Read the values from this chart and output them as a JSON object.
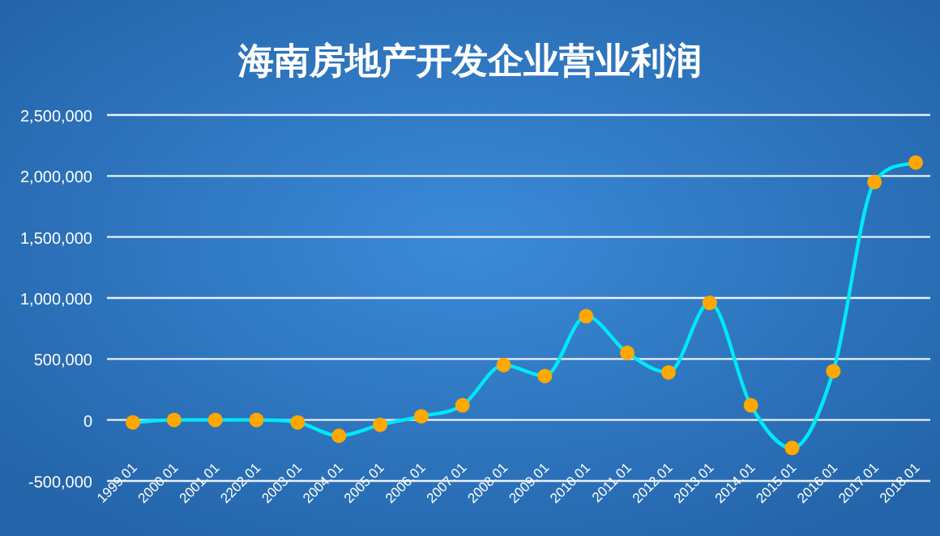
{
  "chart_data": {
    "type": "line",
    "title": "海南房地产开发企业营业利润",
    "categories": [
      "1999.01",
      "2000.01",
      "2001.01",
      "2202.01",
      "2003.01",
      "2004.01",
      "2005.01",
      "2006.01",
      "2007.01",
      "2008.01",
      "2009.01",
      "2010.01",
      "2011.01",
      "2012.01",
      "2013.01",
      "2014.01",
      "2015.01",
      "2016.01",
      "2017.01",
      "2018.01"
    ],
    "series": [
      {
        "color": "#00e8f8",
        "colors": [
          "#ffa800",
          "#ffa800",
          "#ffa800",
          "#ffa800",
          "#ffa800",
          "#ffa800",
          "#ffa800",
          "#ffa800",
          "#ffa800",
          "#ffa800",
          "#ffa800",
          "#ffa800",
          "#ffa800",
          "#ffa800",
          "#ffa800",
          "#ffa800",
          "#ffa800",
          "#ffa800",
          "#ffa800",
          "#ffa800"
        ],
        "values": [
          -20000,
          0,
          0,
          0,
          -20000,
          -130000,
          -40000,
          30000,
          120000,
          450000,
          360000,
          850000,
          550000,
          390000,
          960000,
          120000,
          -230000,
          400000,
          1950000,
          2110000
        ]
      }
    ],
    "ylim": [
      -500000,
      2500000
    ],
    "yticks": [
      {
        "value": -500000,
        "label": "-500,000"
      },
      {
        "value": 0,
        "label": "0"
      },
      {
        "value": 500000,
        "label": "500,000"
      },
      {
        "value": 1000000,
        "label": "1,000,000"
      },
      {
        "value": 1500000,
        "label": "1,500,000"
      },
      {
        "value": 2000000,
        "label": "2,000,000"
      },
      {
        "value": 2500000,
        "label": "2,500,000"
      }
    ],
    "grid": "y",
    "marker": "circle",
    "line_style": "solid"
  }
}
